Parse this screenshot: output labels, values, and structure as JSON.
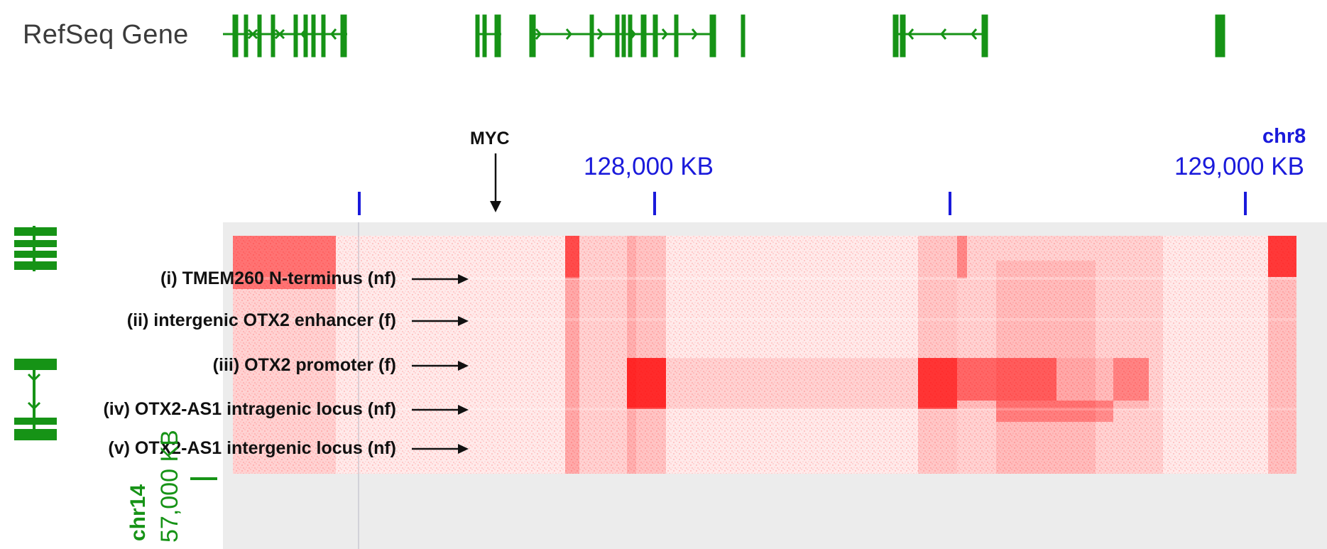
{
  "track": {
    "label": "RefSeq Gene"
  },
  "ruler": {
    "chromosome": "chr8",
    "ticks": [
      {
        "label": "128,000 KB"
      },
      {
        "label": "129,000 KB"
      }
    ]
  },
  "left_axis": {
    "chromosome": "chr14",
    "tick_label": "57,000 KB"
  },
  "annotations": {
    "myc": "MYC",
    "items": [
      {
        "label": "(i) TMEM260 N-terminus (nf)"
      },
      {
        "label": "(ii) intergenic OTX2 enhancer (f)"
      },
      {
        "label": "(iii) OTX2 promoter (f)"
      },
      {
        "label": "(iv) OTX2-AS1 intragenic locus (nf)"
      },
      {
        "label": "(v) OTX2-AS1 intergenic locus (nf)"
      }
    ]
  },
  "colors": {
    "gene": "#169316",
    "ruler": "#1a1adb",
    "heatmap": "#ff0000",
    "background": "#ececec"
  }
}
